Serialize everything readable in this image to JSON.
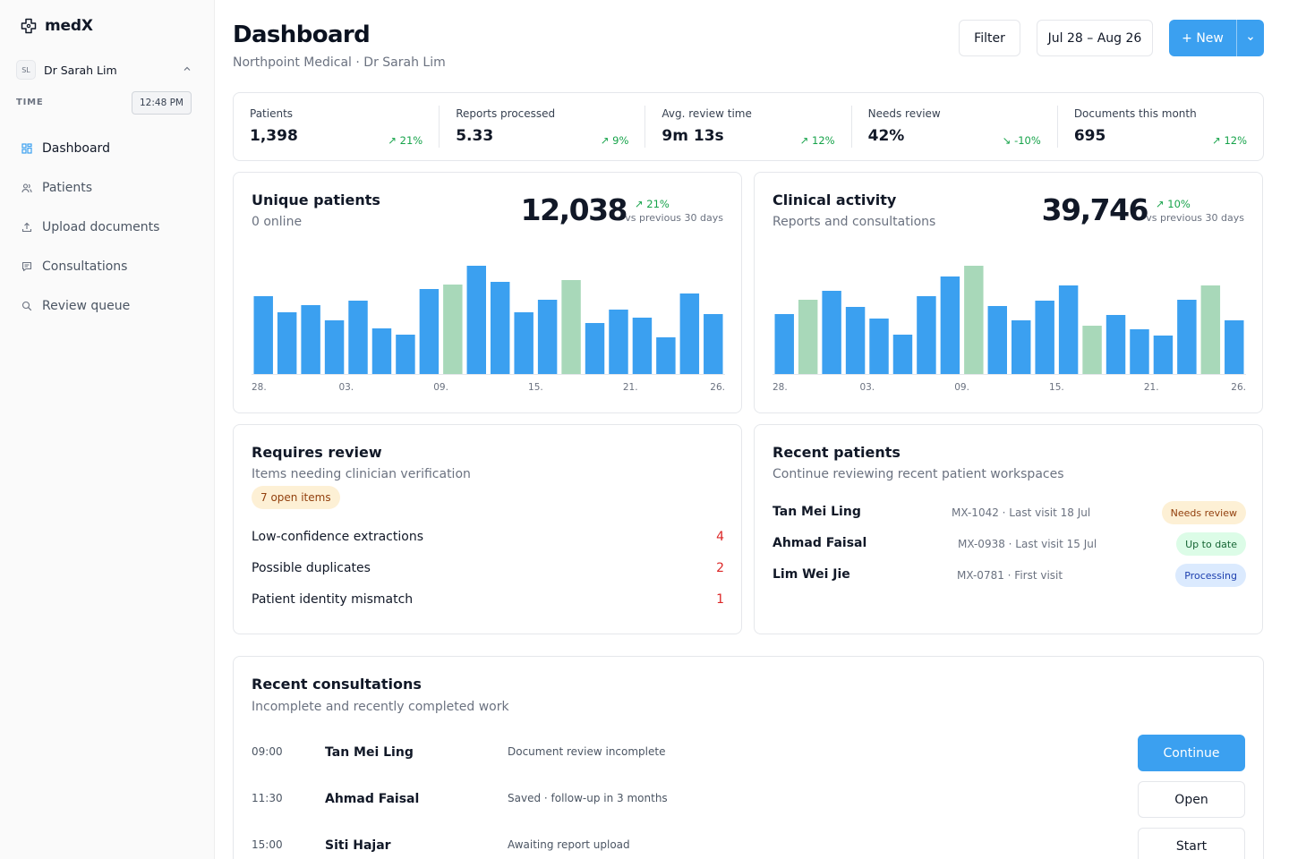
{
  "app": {
    "name": "medX"
  },
  "user": {
    "initials": "SL",
    "name": "Dr Sarah Lim"
  },
  "time": {
    "label": "TIME",
    "value": "12:48 PM"
  },
  "nav": [
    {
      "label": "Dashboard",
      "icon": "dashboard-icon",
      "active": true
    },
    {
      "label": "Patients",
      "icon": "users-icon"
    },
    {
      "label": "Upload documents",
      "icon": "upload-icon"
    },
    {
      "label": "Consultations",
      "icon": "chat-icon"
    },
    {
      "label": "Review queue",
      "icon": "search-icon"
    }
  ],
  "header": {
    "title": "Dashboard",
    "subtitle": "Northpoint Medical · Dr Sarah Lim",
    "filter_label": "Filter",
    "date_range": "Jul 28 – Aug 26",
    "new_label": "+ New"
  },
  "stats": [
    {
      "label": "Patients",
      "value": "1,398",
      "delta": "21%",
      "direction": "up"
    },
    {
      "label": "Reports processed",
      "value": "5.33",
      "delta": "9%",
      "direction": "up"
    },
    {
      "label": "Avg. review time",
      "value": "9m 13s",
      "delta": "12%",
      "direction": "up"
    },
    {
      "label": "Needs review",
      "value": "42%",
      "delta": "-10%",
      "direction": "down"
    },
    {
      "label": "Documents this month",
      "value": "695",
      "delta": "12%",
      "direction": "up"
    }
  ],
  "colors": {
    "accent": "#3ba0f0",
    "bar_primary": "#3ba0f0",
    "bar_highlight": "#a8d8b9",
    "positive": "#16a34a",
    "negative": "#dc2626"
  },
  "chart_data": [
    {
      "type": "bar",
      "title": "Unique patients",
      "subtitle": "0 online",
      "total": "12,038",
      "delta": "21%",
      "comparison": "vs previous 30 days",
      "tick_labels": [
        "28.",
        "03.",
        "09.",
        "15.",
        "21.",
        "26."
      ],
      "values": [
        87,
        69,
        77,
        60,
        82,
        51,
        44,
        95,
        100,
        121,
        103,
        69,
        83,
        105,
        57,
        72,
        63,
        41,
        90,
        67
      ],
      "highlight_indices": [
        8,
        13
      ],
      "ylim": [
        0,
        130
      ]
    },
    {
      "type": "bar",
      "title": "Clinical activity",
      "subtitle": "Reports and consultations",
      "total": "39,746",
      "delta": "10%",
      "comparison": "vs previous 30 days",
      "tick_labels": [
        "28.",
        "03.",
        "09.",
        "15.",
        "21.",
        "26."
      ],
      "values": [
        67,
        83,
        93,
        75,
        62,
        44,
        87,
        109,
        121,
        76,
        60,
        82,
        99,
        54,
        66,
        50,
        43,
        83,
        99,
        60
      ],
      "highlight_indices": [
        1,
        8,
        13,
        18
      ],
      "ylim": [
        0,
        130
      ]
    }
  ],
  "review": {
    "title": "Requires review",
    "subtitle": "Items needing clinician verification",
    "badge": "7 open items",
    "items": [
      {
        "label": "Low-confidence extractions",
        "count": "4"
      },
      {
        "label": "Possible duplicates",
        "count": "2"
      },
      {
        "label": "Patient identity mismatch",
        "count": "1"
      }
    ]
  },
  "recent_patients": {
    "title": "Recent patients",
    "subtitle": "Continue reviewing recent patient workspaces",
    "items": [
      {
        "name": "Tan Mei Ling",
        "meta": "MX-1042 · Last visit 18 Jul",
        "status": "Needs review",
        "tone": "review"
      },
      {
        "name": "Ahmad Faisal",
        "meta": "MX-0938 · Last visit 15 Jul",
        "status": "Up to date",
        "tone": "ok"
      },
      {
        "name": "Lim Wei Jie",
        "meta": "MX-0781 · First visit",
        "status": "Processing",
        "tone": "proc"
      }
    ]
  },
  "consultations": {
    "title": "Recent consultations",
    "subtitle": "Incomplete and recently completed work",
    "items": [
      {
        "time": "09:00",
        "name": "Tan Mei Ling",
        "status": "Document review incomplete",
        "action": "Continue",
        "primary": true
      },
      {
        "time": "11:30",
        "name": "Ahmad Faisal",
        "status": "Saved · follow-up in 3 months",
        "action": "Open",
        "primary": false
      },
      {
        "time": "15:00",
        "name": "Siti Hajar",
        "status": "Awaiting report upload",
        "action": "Start",
        "primary": false
      }
    ]
  }
}
